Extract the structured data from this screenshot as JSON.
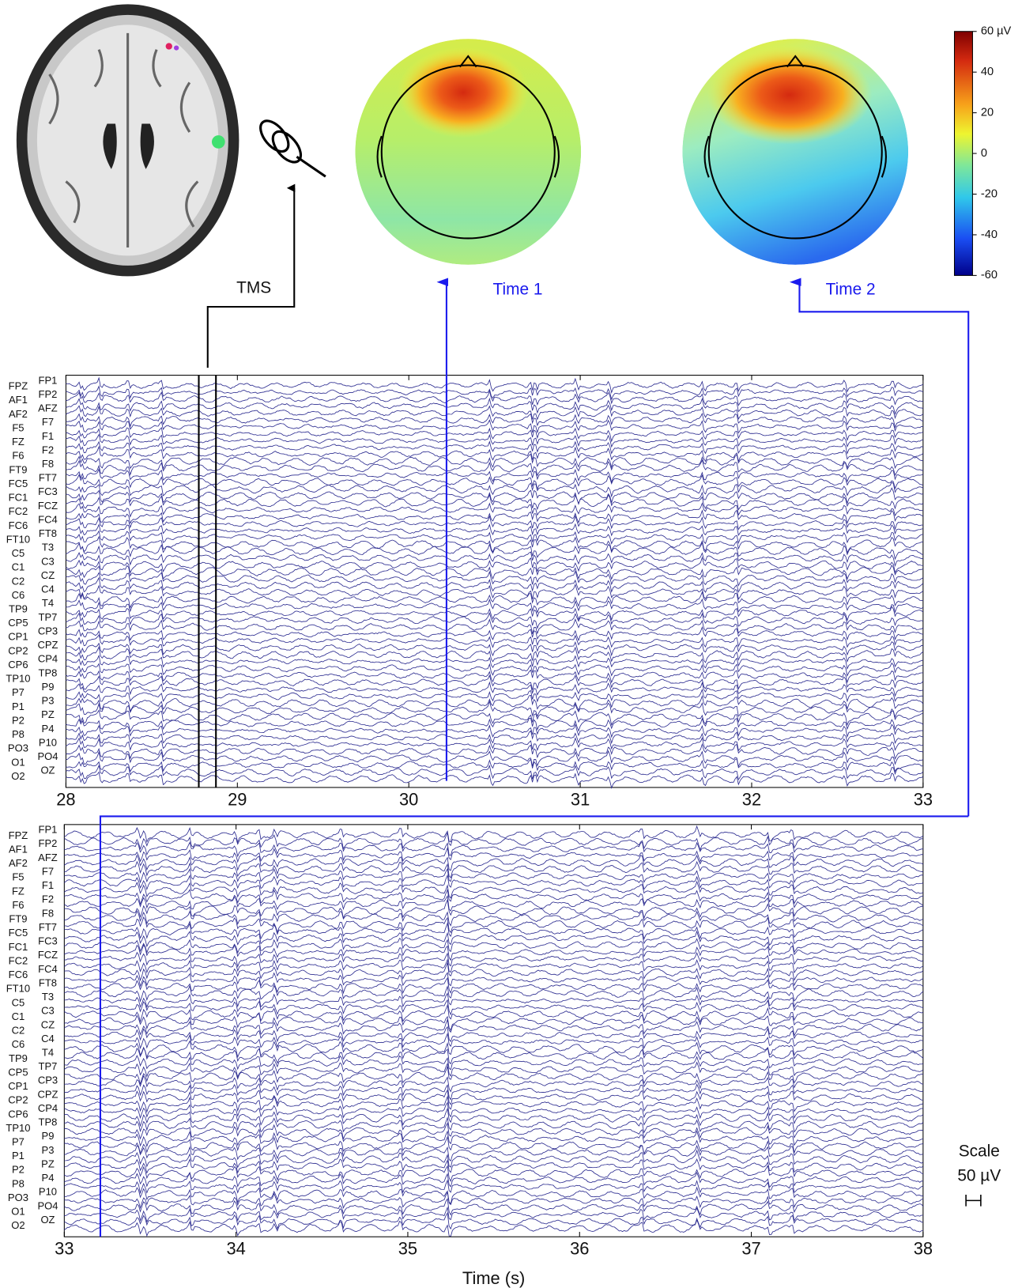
{
  "brain_panel": {
    "stimulus_label": "TMS"
  },
  "topomaps": [
    {
      "label": "Time 1"
    },
    {
      "label": "Time 2"
    }
  ],
  "colorbar": {
    "range": [
      -60,
      60
    ],
    "ticks": [
      {
        "value": 60,
        "label": "60 µV"
      },
      40,
      20,
      0,
      -20,
      -40,
      -60
    ]
  },
  "channels_left": [
    "FPZ",
    "AF1",
    "AF2",
    "F5",
    "FZ",
    "F6",
    "FT9",
    "FC5",
    "FC1",
    "FC2",
    "FC6",
    "FT10",
    "C5",
    "C1",
    "C2",
    "C6",
    "TP9",
    "CP5",
    "CP1",
    "CP2",
    "CP6",
    "TP10",
    "P7",
    "P1",
    "P2",
    "P8",
    "PO3",
    "O1",
    "O2"
  ],
  "channels_right": [
    "FP1",
    "FP2",
    "AFZ",
    "F7",
    "F1",
    "F2",
    "F8",
    "FT7",
    "FC3",
    "FCZ",
    "FC4",
    "FT8",
    "T3",
    "C3",
    "CZ",
    "C4",
    "T4",
    "TP7",
    "CP3",
    "CPZ",
    "CP4",
    "TP8",
    "P9",
    "P3",
    "PZ",
    "P4",
    "P10",
    "PO4",
    "OZ"
  ],
  "eeg_panels": [
    {
      "xlim": [
        28,
        33
      ],
      "xticks": [
        28,
        29,
        30,
        31,
        32,
        33
      ],
      "markers": {
        "tms": [
          28.775,
          28.875
        ],
        "time1": 30.22
      }
    },
    {
      "xlim": [
        33,
        38
      ],
      "xticks": [
        33,
        34,
        35,
        36,
        37,
        38
      ],
      "markers": {
        "time2": 33.21
      },
      "x_label": "Time (s)"
    }
  ],
  "scale": {
    "title": "Scale",
    "label": "50 µV"
  }
}
